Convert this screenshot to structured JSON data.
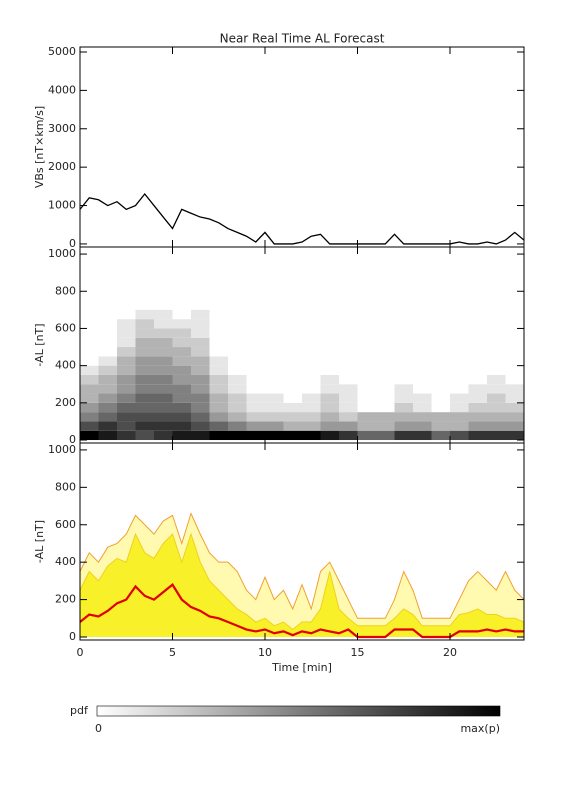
{
  "chart_data": [
    {
      "type": "line",
      "title": "Near Real Time AL Forecast",
      "ylabel": "VBs [nT×km/s]",
      "xlim": [
        0,
        24
      ],
      "xticks": [
        0,
        5,
        10,
        15,
        20
      ],
      "ylim": [
        -80,
        5130
      ],
      "yticks": [
        0,
        1000,
        2000,
        3000,
        4000,
        5000
      ],
      "x": [
        0,
        0.5,
        1,
        1.5,
        2,
        2.5,
        3,
        3.5,
        4,
        4.5,
        5,
        5.5,
        6,
        6.5,
        7,
        7.5,
        8,
        8.5,
        9,
        9.5,
        10,
        10.5,
        11,
        11.5,
        12,
        12.5,
        13,
        13.5,
        14,
        14.5,
        15,
        15.5,
        16,
        16.5,
        17,
        17.5,
        18,
        18.5,
        19,
        19.5,
        20,
        20.5,
        21,
        21.5,
        22,
        22.5,
        23,
        23.5,
        24
      ],
      "series": [
        {
          "color": "#000000",
          "values": [
            900,
            1200,
            1150,
            1000,
            1100,
            900,
            1000,
            1300,
            1000,
            700,
            400,
            900,
            800,
            700,
            650,
            550,
            400,
            300,
            200,
            50,
            300,
            0,
            0,
            0,
            50,
            200,
            250,
            0,
            0,
            0,
            0,
            0,
            0,
            0,
            250,
            0,
            0,
            0,
            0,
            0,
            0,
            50,
            0,
            0,
            50,
            0,
            100,
            300,
            100
          ]
        }
      ]
    },
    {
      "type": "heatmap",
      "ylabel": "-AL [nT]",
      "xlim": [
        0,
        24
      ],
      "xticks": [
        0,
        5,
        10,
        15,
        20
      ],
      "ylim": [
        -16,
        1038
      ],
      "yticks": [
        0,
        200,
        400,
        600,
        800,
        1000
      ],
      "x_bins": [
        0,
        1,
        2,
        3,
        4,
        5,
        6,
        7,
        8,
        9,
        10,
        11,
        12,
        13,
        14,
        15,
        16,
        17,
        18,
        19,
        20,
        21,
        22,
        23,
        24
      ],
      "y_bins": [
        0,
        50,
        100,
        150,
        200,
        250,
        300,
        350,
        400,
        450,
        500,
        550,
        600,
        650,
        700
      ],
      "z": [
        [
          1,
          0.7,
          0.5,
          0.4,
          0.3,
          0.3,
          0.2,
          0.1,
          0,
          0,
          0,
          0,
          0,
          0
        ],
        [
          0.9,
          0.8,
          0.6,
          0.5,
          0.4,
          0.3,
          0.3,
          0.2,
          0.1,
          0,
          0,
          0,
          0,
          0
        ],
        [
          0.8,
          0.7,
          0.7,
          0.6,
          0.5,
          0.4,
          0.4,
          0.3,
          0.3,
          0.2,
          0.1,
          0.1,
          0.1,
          0
        ],
        [
          0.7,
          0.8,
          0.7,
          0.6,
          0.6,
          0.5,
          0.5,
          0.4,
          0.4,
          0.3,
          0.3,
          0.2,
          0.2,
          0.1
        ],
        [
          0.8,
          0.8,
          0.7,
          0.6,
          0.6,
          0.5,
          0.5,
          0.4,
          0.4,
          0.3,
          0.3,
          0.2,
          0.1,
          0.1
        ],
        [
          0.9,
          0.8,
          0.7,
          0.6,
          0.5,
          0.5,
          0.4,
          0.4,
          0.3,
          0.3,
          0.2,
          0.2,
          0.1,
          0
        ],
        [
          0.9,
          0.7,
          0.6,
          0.5,
          0.5,
          0.4,
          0.4,
          0.3,
          0.3,
          0.2,
          0.2,
          0.1,
          0.1,
          0.1
        ],
        [
          1,
          0.6,
          0.4,
          0.3,
          0.3,
          0.2,
          0.2,
          0.1,
          0.1,
          0,
          0,
          0,
          0,
          0
        ],
        [
          1,
          0.5,
          0.3,
          0.2,
          0.2,
          0.1,
          0.1,
          0,
          0,
          0,
          0,
          0,
          0,
          0
        ],
        [
          1,
          0.4,
          0.2,
          0.1,
          0.1,
          0,
          0,
          0,
          0,
          0,
          0,
          0,
          0,
          0
        ],
        [
          1,
          0.4,
          0.2,
          0.1,
          0.1,
          0,
          0,
          0,
          0,
          0,
          0,
          0,
          0,
          0
        ],
        [
          1,
          0.3,
          0.2,
          0.1,
          0,
          0,
          0,
          0,
          0,
          0,
          0,
          0,
          0,
          0
        ],
        [
          1,
          0.3,
          0.2,
          0.1,
          0.1,
          0,
          0,
          0,
          0,
          0,
          0,
          0,
          0,
          0
        ],
        [
          0.9,
          0.4,
          0.3,
          0.2,
          0.2,
          0.1,
          0.1,
          0,
          0,
          0,
          0,
          0,
          0,
          0
        ],
        [
          0.8,
          0.4,
          0.2,
          0.1,
          0.1,
          0.1,
          0,
          0,
          0,
          0,
          0,
          0,
          0,
          0
        ],
        [
          0.6,
          0.3,
          0.3,
          0,
          0,
          0,
          0,
          0,
          0,
          0,
          0,
          0,
          0,
          0
        ],
        [
          0.6,
          0.3,
          0.3,
          0,
          0,
          0,
          0,
          0,
          0,
          0,
          0,
          0,
          0,
          0
        ],
        [
          0.8,
          0.4,
          0.3,
          0.2,
          0.1,
          0.1,
          0,
          0,
          0,
          0,
          0,
          0,
          0,
          0
        ],
        [
          0.8,
          0.4,
          0.3,
          0.1,
          0.1,
          0,
          0,
          0,
          0,
          0,
          0,
          0,
          0,
          0
        ],
        [
          0.6,
          0.3,
          0.3,
          0,
          0,
          0,
          0,
          0,
          0,
          0,
          0,
          0,
          0,
          0
        ],
        [
          0.7,
          0.3,
          0.3,
          0.1,
          0.1,
          0,
          0,
          0,
          0,
          0,
          0,
          0,
          0,
          0
        ],
        [
          0.8,
          0.4,
          0.3,
          0.2,
          0.1,
          0.1,
          0,
          0,
          0,
          0,
          0,
          0,
          0,
          0
        ],
        [
          0.8,
          0.4,
          0.3,
          0.2,
          0.2,
          0.1,
          0.1,
          0,
          0,
          0,
          0,
          0,
          0,
          0
        ],
        [
          0.8,
          0.4,
          0.3,
          0.2,
          0.1,
          0.1,
          0,
          0,
          0,
          0,
          0,
          0,
          0,
          0
        ]
      ],
      "colorbar": {
        "label": "pdf",
        "min_label": "0",
        "max_label": "max(p)"
      }
    },
    {
      "type": "area",
      "ylabel": "-AL [nT]",
      "xlabel": "Time [min]",
      "xlim": [
        0,
        24
      ],
      "xticks": [
        0,
        5,
        10,
        15,
        20
      ],
      "ylim": [
        -16,
        1037
      ],
      "yticks": [
        0,
        200,
        400,
        600,
        800,
        1000
      ],
      "x": [
        0,
        0.5,
        1,
        1.5,
        2,
        2.5,
        3,
        3.5,
        4,
        4.5,
        5,
        5.5,
        6,
        6.5,
        7,
        7.5,
        8,
        8.5,
        9,
        9.5,
        10,
        10.5,
        11,
        11.5,
        12,
        12.5,
        13,
        13.5,
        14,
        14.5,
        15,
        15.5,
        16,
        16.5,
        17,
        17.5,
        18,
        18.5,
        19,
        19.5,
        20,
        20.5,
        21,
        21.5,
        22,
        22.5,
        23,
        23.5,
        24
      ],
      "series": [
        {
          "color": "#f0a030",
          "fill": "#fffab0",
          "values": [
            350,
            450,
            400,
            480,
            500,
            550,
            650,
            600,
            550,
            620,
            650,
            500,
            660,
            550,
            450,
            400,
            400,
            350,
            250,
            200,
            320,
            200,
            250,
            150,
            280,
            150,
            350,
            400,
            300,
            200,
            100,
            100,
            100,
            100,
            200,
            350,
            250,
            100,
            100,
            100,
            100,
            200,
            300,
            350,
            300,
            250,
            350,
            250,
            200
          ]
        },
        {
          "color": "#f0d020",
          "fill": "#f8f028",
          "values": [
            250,
            350,
            300,
            380,
            420,
            400,
            550,
            450,
            420,
            500,
            550,
            400,
            550,
            400,
            300,
            250,
            200,
            150,
            120,
            80,
            100,
            60,
            80,
            40,
            80,
            80,
            150,
            350,
            150,
            100,
            60,
            60,
            60,
            60,
            100,
            150,
            120,
            60,
            60,
            60,
            60,
            120,
            130,
            150,
            120,
            120,
            100,
            100,
            80
          ]
        },
        {
          "color": "#e00000",
          "values": [
            80,
            120,
            110,
            140,
            180,
            200,
            270,
            220,
            200,
            240,
            280,
            200,
            160,
            140,
            110,
            100,
            80,
            60,
            40,
            30,
            40,
            20,
            30,
            10,
            30,
            20,
            40,
            30,
            20,
            40,
            0,
            0,
            0,
            0,
            40,
            40,
            40,
            0,
            0,
            0,
            0,
            30,
            30,
            30,
            40,
            30,
            40,
            30,
            30
          ]
        }
      ]
    }
  ]
}
